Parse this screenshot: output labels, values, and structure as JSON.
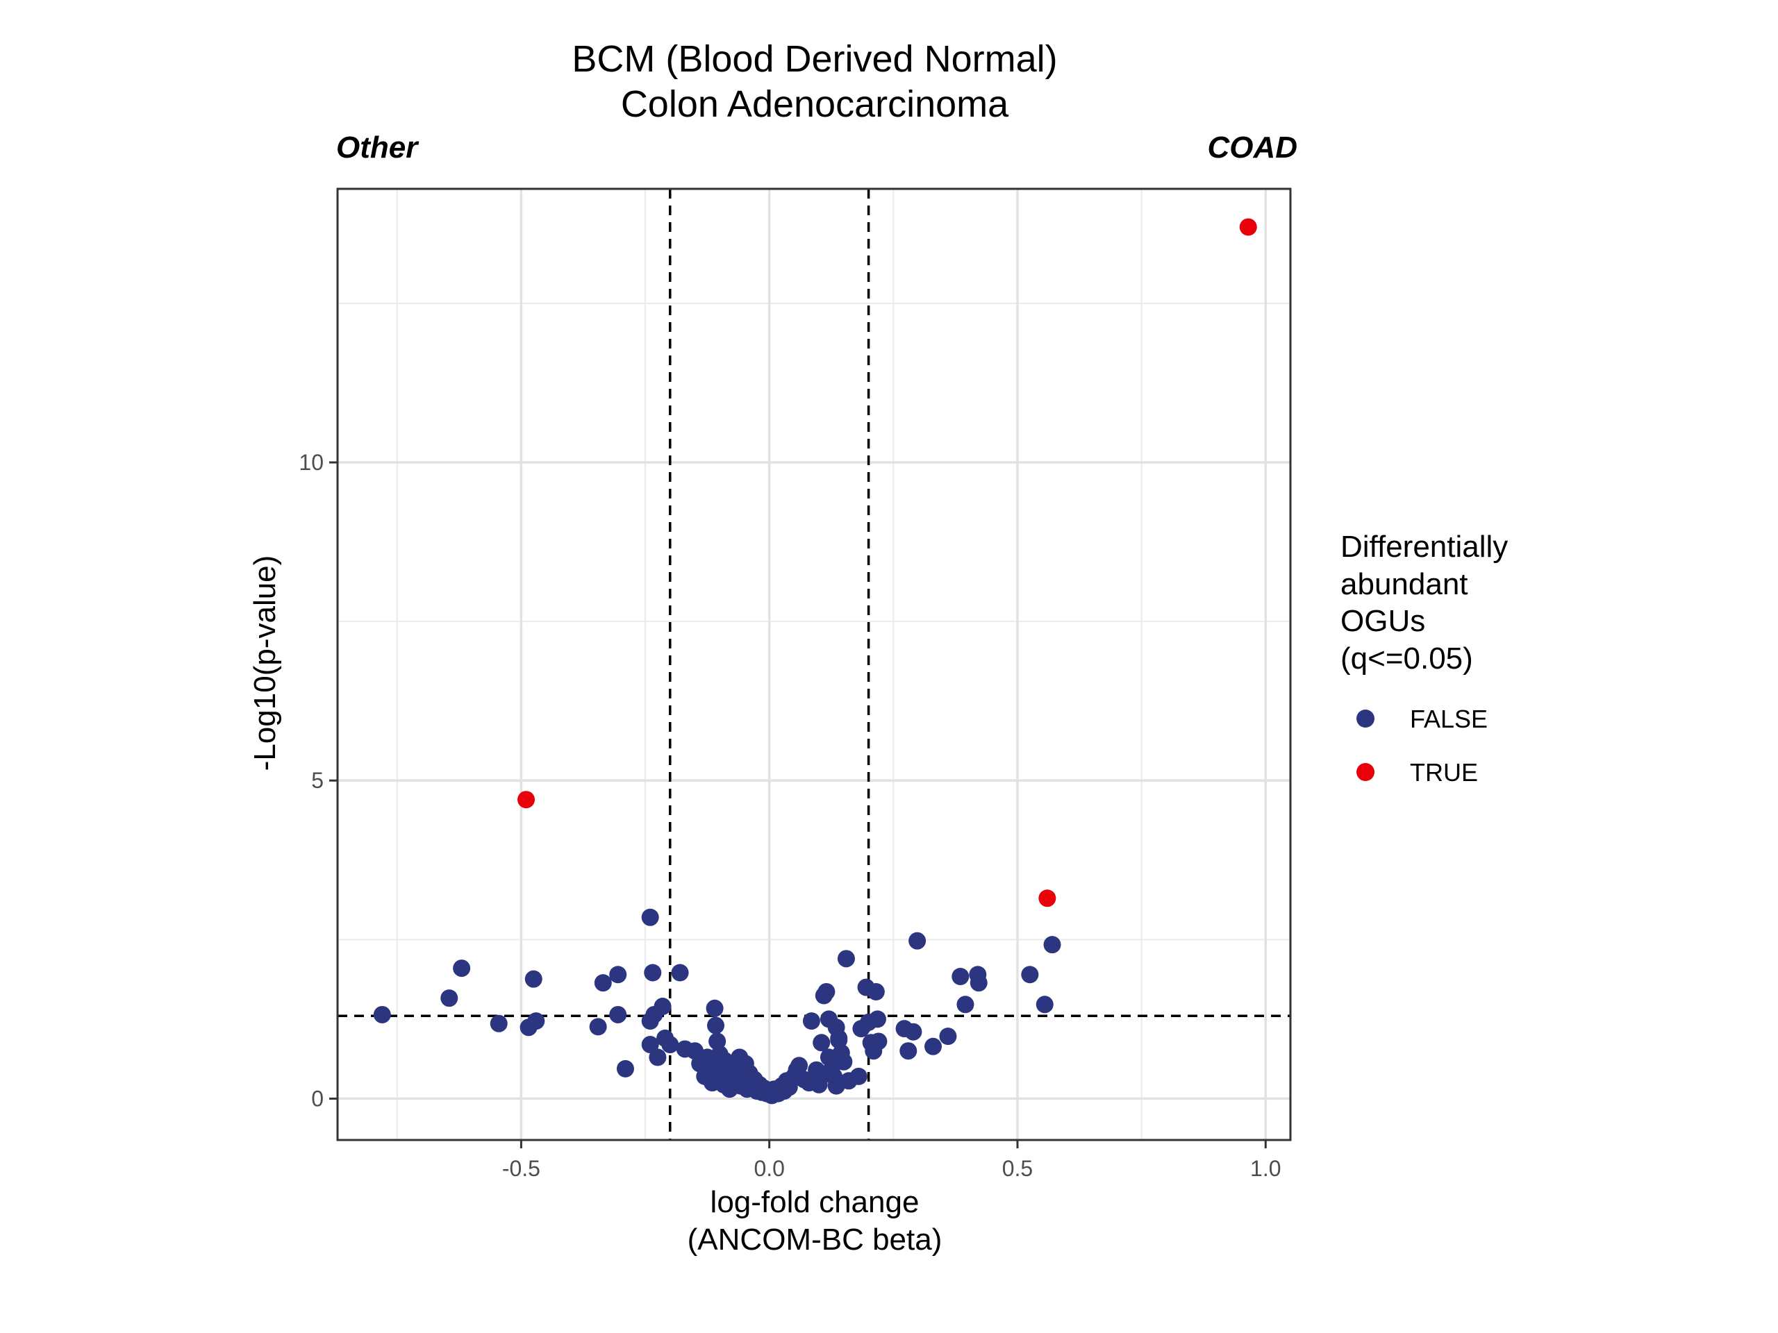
{
  "chart_data": {
    "type": "scatter",
    "title": [
      "BCM (Blood Derived Normal)",
      "Colon Adenocarcinoma"
    ],
    "left_label": "Other",
    "right_label": "COAD",
    "xlabel": [
      "log-fold change",
      "(ANCOM-BC beta)"
    ],
    "ylabel": "-Log10(p-value)",
    "xlim": [
      -0.87,
      1.05
    ],
    "ylim": [
      -0.65,
      14.3
    ],
    "x_ticks": [
      -0.5,
      0.0,
      0.5,
      1.0
    ],
    "x_tick_labels": [
      "-0.5",
      "0.0",
      "0.5",
      "1.0"
    ],
    "y_ticks": [
      0,
      5,
      10
    ],
    "y_tick_labels": [
      "0",
      "5",
      "10"
    ],
    "grid": true,
    "reference_lines": {
      "x": [
        -0.2,
        0.2
      ],
      "y": 1.3,
      "style": "dashed"
    },
    "legend": {
      "title": [
        "Differentially",
        "abundant",
        "OGUs",
        "(q<=0.05)"
      ],
      "placement": "right",
      "entries": [
        {
          "label": "FALSE",
          "color": "#2b3580"
        },
        {
          "label": "TRUE",
          "color": "#e8000b"
        }
      ]
    },
    "series": [
      {
        "name": "FALSE",
        "color": "#2b3580",
        "points": [
          [
            -0.78,
            1.32
          ],
          [
            -0.645,
            1.58
          ],
          [
            -0.62,
            2.05
          ],
          [
            -0.545,
            1.18
          ],
          [
            -0.485,
            1.12
          ],
          [
            -0.475,
            1.88
          ],
          [
            -0.47,
            1.22
          ],
          [
            -0.345,
            1.13
          ],
          [
            -0.335,
            1.82
          ],
          [
            -0.305,
            1.95
          ],
          [
            -0.305,
            1.32
          ],
          [
            -0.29,
            0.47
          ],
          [
            -0.24,
            2.85
          ],
          [
            -0.24,
            1.22
          ],
          [
            -0.24,
            0.85
          ],
          [
            -0.235,
            1.98
          ],
          [
            -0.232,
            1.32
          ],
          [
            -0.225,
            0.65
          ],
          [
            -0.215,
            1.45
          ],
          [
            -0.21,
            0.95
          ],
          [
            -0.2,
            0.85
          ],
          [
            -0.18,
            1.98
          ],
          [
            -0.17,
            0.78
          ],
          [
            -0.15,
            0.75
          ],
          [
            -0.14,
            0.55
          ],
          [
            -0.13,
            0.35
          ],
          [
            -0.125,
            0.65
          ],
          [
            -0.12,
            0.45
          ],
          [
            -0.115,
            0.25
          ],
          [
            -0.11,
            1.42
          ],
          [
            -0.108,
            1.15
          ],
          [
            -0.105,
            0.9
          ],
          [
            -0.1,
            0.7
          ],
          [
            -0.098,
            0.5
          ],
          [
            -0.095,
            0.35
          ],
          [
            -0.092,
            0.22
          ],
          [
            -0.09,
            0.6
          ],
          [
            -0.085,
            0.4
          ],
          [
            -0.082,
            0.3
          ],
          [
            -0.08,
            0.15
          ],
          [
            -0.075,
            0.55
          ],
          [
            -0.072,
            0.45
          ],
          [
            -0.07,
            0.28
          ],
          [
            -0.065,
            0.35
          ],
          [
            -0.06,
            0.65
          ],
          [
            -0.058,
            0.2
          ],
          [
            -0.055,
            0.45
          ],
          [
            -0.05,
            0.3
          ],
          [
            -0.048,
            0.55
          ],
          [
            -0.045,
            0.15
          ],
          [
            -0.042,
            0.25
          ],
          [
            -0.04,
            0.4
          ],
          [
            -0.035,
            0.18
          ],
          [
            -0.03,
            0.3
          ],
          [
            -0.025,
            0.12
          ],
          [
            -0.02,
            0.22
          ],
          [
            -0.015,
            0.1
          ],
          [
            -0.01,
            0.16
          ],
          [
            -0.005,
            0.08
          ],
          [
            0.0,
            0.12
          ],
          [
            0.005,
            0.05
          ],
          [
            0.01,
            0.15
          ],
          [
            0.018,
            0.08
          ],
          [
            0.025,
            0.2
          ],
          [
            0.03,
            0.12
          ],
          [
            0.035,
            0.28
          ],
          [
            0.04,
            0.18
          ],
          [
            0.05,
            0.35
          ],
          [
            0.055,
            0.45
          ],
          [
            0.06,
            0.52
          ],
          [
            0.07,
            0.3
          ],
          [
            0.08,
            0.25
          ],
          [
            0.085,
            1.22
          ],
          [
            0.095,
            0.45
          ],
          [
            0.1,
            0.38
          ],
          [
            0.1,
            0.22
          ],
          [
            0.105,
            0.88
          ],
          [
            0.11,
            1.62
          ],
          [
            0.115,
            1.68
          ],
          [
            0.12,
            1.25
          ],
          [
            0.12,
            0.65
          ],
          [
            0.125,
            0.45
          ],
          [
            0.13,
            0.35
          ],
          [
            0.135,
            0.2
          ],
          [
            0.135,
            1.12
          ],
          [
            0.14,
            0.95
          ],
          [
            0.14,
            0.92
          ],
          [
            0.145,
            0.72
          ],
          [
            0.15,
            0.58
          ],
          [
            0.155,
            2.2
          ],
          [
            0.16,
            0.28
          ],
          [
            0.18,
            0.35
          ],
          [
            0.185,
            1.1
          ],
          [
            0.195,
            1.75
          ],
          [
            0.2,
            1.2
          ],
          [
            0.205,
            0.88
          ],
          [
            0.21,
            0.75
          ],
          [
            0.215,
            1.68
          ],
          [
            0.218,
            1.25
          ],
          [
            0.22,
            0.9
          ],
          [
            0.272,
            1.1
          ],
          [
            0.28,
            0.75
          ],
          [
            0.29,
            1.05
          ],
          [
            0.298,
            2.48
          ],
          [
            0.33,
            0.82
          ],
          [
            0.36,
            0.98
          ],
          [
            0.385,
            1.92
          ],
          [
            0.395,
            1.48
          ],
          [
            0.42,
            1.95
          ],
          [
            0.422,
            1.82
          ],
          [
            0.525,
            1.95
          ],
          [
            0.555,
            1.48
          ],
          [
            0.57,
            2.42
          ]
        ]
      },
      {
        "name": "TRUE",
        "color": "#e8000b",
        "points": [
          [
            -0.49,
            4.7
          ],
          [
            0.56,
            3.15
          ],
          [
            0.965,
            13.7
          ]
        ]
      }
    ]
  }
}
